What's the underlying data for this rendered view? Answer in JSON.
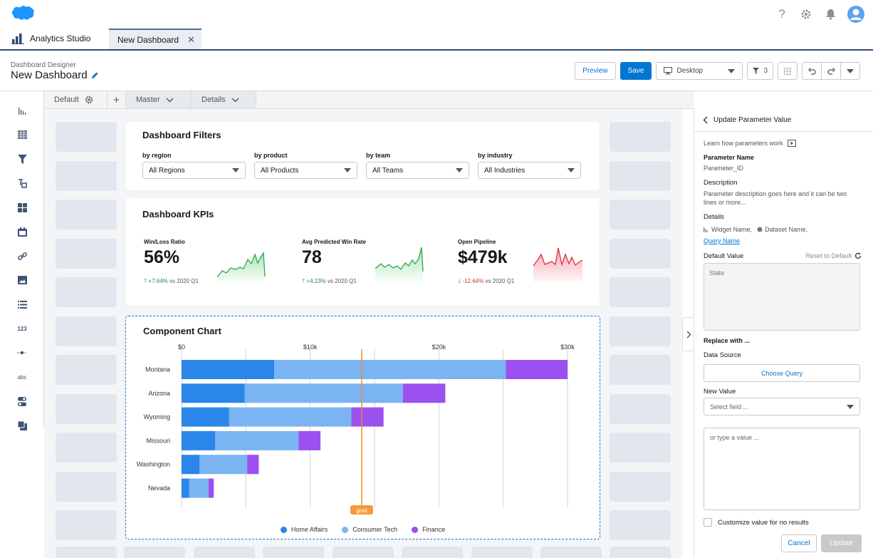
{
  "global_header": {
    "icons": [
      "help-icon",
      "gear-icon",
      "bell-icon",
      "user-avatar-icon"
    ]
  },
  "tabs": {
    "app_name": "Analytics Studio",
    "open_tab": "New Dashboard",
    "close_glyph": "✕"
  },
  "designer": {
    "subtitle": "Dashboard Designer",
    "title": "New Dashboard",
    "preview_label": "Preview",
    "save_label": "Save",
    "device_label": "Desktop",
    "filter_count": "3"
  },
  "canvas_tabs": {
    "default_label": "Default",
    "add_glyph": "+",
    "master_label": "Master",
    "details_label": "Details"
  },
  "filters": {
    "title": "Dashboard Filters",
    "items": [
      {
        "label": "by region",
        "value": "All Regions"
      },
      {
        "label": "by product",
        "value": "All Products"
      },
      {
        "label": "by team",
        "value": "All Teams"
      },
      {
        "label": "by industry",
        "value": "All Industries"
      }
    ]
  },
  "kpis": {
    "title": "Dashboard KPIs",
    "items": [
      {
        "label": "Win/Loss Ratio",
        "value": "56%",
        "arrow": "🡑",
        "delta": "+7.64%",
        "compare": "vs 2020 Q1",
        "trend": "up"
      },
      {
        "label": "Avg Predicted Win Rate",
        "value": "78",
        "arrow": "🡑",
        "delta": "+4.23%",
        "compare": "vs 2020 Q1",
        "trend": "up"
      },
      {
        "label": "Open Pipeline",
        "value": "$479k",
        "arrow": "🡓",
        "delta": "-12.64%",
        "compare": "vs 2020 Q1",
        "trend": "down"
      }
    ]
  },
  "component_chart": {
    "title": "Component Chart",
    "goal_label": "goal"
  },
  "chart_data": {
    "type": "bar",
    "orientation": "horizontal",
    "stacked": true,
    "categories": [
      "Montana",
      "Arizona",
      "Wyoming",
      "Missouri",
      "Washington",
      "Nevada"
    ],
    "series": [
      {
        "name": "Home Affairs",
        "color": "#2a86e8",
        "values": [
          7200,
          4900,
          3700,
          2600,
          1400,
          600
        ]
      },
      {
        "name": "Consumer Tech",
        "color": "#7ab4f2",
        "values": [
          18000,
          12300,
          9500,
          6500,
          3700,
          1500
        ]
      },
      {
        "name": "Finance",
        "color": "#9b50f0",
        "values": [
          4800,
          3300,
          2500,
          1700,
          900,
          400
        ]
      }
    ],
    "x_ticks": [
      "$0",
      "$10k",
      "$20k",
      "$30k"
    ],
    "xlim": [
      0,
      30000
    ],
    "goal_value": 14000,
    "gridlines": true,
    "legend_position": "bottom"
  },
  "right_panel": {
    "header": "Update Parameter Value",
    "learn_text": "Learn how parameters work",
    "param_name_heading": "Parameter Name",
    "param_name_value": "Parameter_ID",
    "description_heading": "Description",
    "description_text": "Parameter description goes here and it can be two lines or more...",
    "details_heading": "Details",
    "details_widget": "Widget Name,",
    "details_dataset": "Dataset Name,",
    "details_query_link": "Query Name",
    "default_value_label": "Default Value",
    "reset_label": "Reset to Default",
    "default_value_text": "State",
    "replace_heading": "Replace with ...",
    "data_source_label": "Data Source",
    "choose_query_label": "Choose Query",
    "new_value_label": "New Value",
    "select_field_placeholder": "Select field ...",
    "type_value_placeholder": "or type a value ...",
    "customize_label": "Customize value for no results",
    "cancel_label": "Cancel",
    "update_label": "Update"
  }
}
